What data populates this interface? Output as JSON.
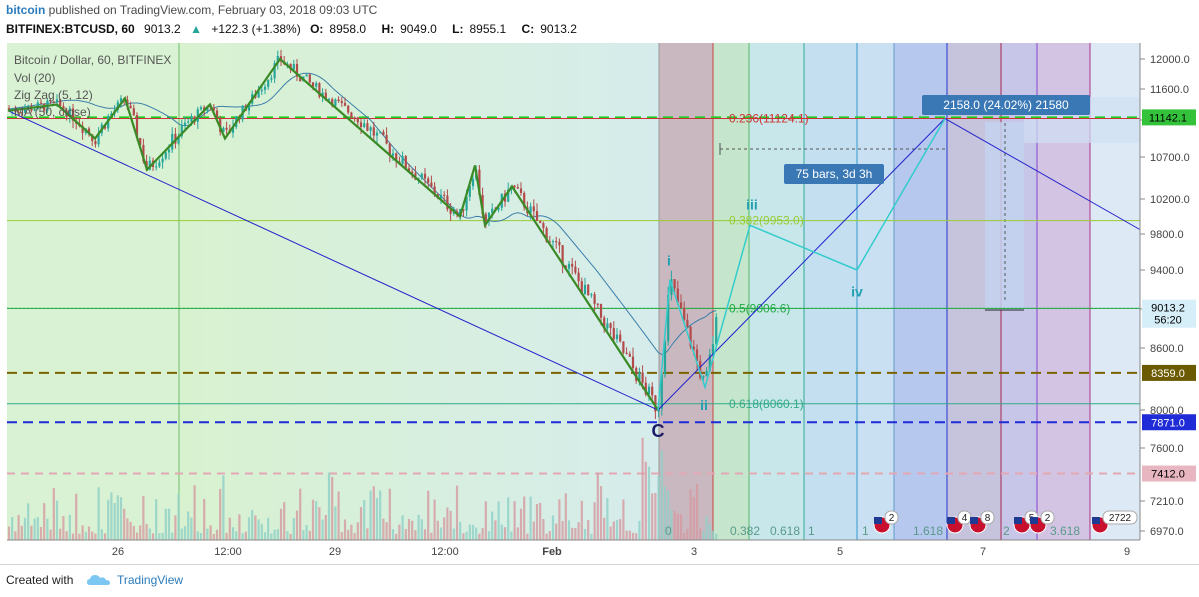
{
  "header": {
    "author": "bitcoin",
    "published": "published on TradingView.com, February 03, 2018 09:03 UTC",
    "symbol": "BITFINEX:BTCUSD, 60",
    "last": "9013.2",
    "change_arrow": "▲",
    "change": "+122.3 (+1.38%)",
    "o_label": "O:",
    "o": "8958.0",
    "h_label": "H:",
    "h": "9049.0",
    "l_label": "L:",
    "l": "8955.1",
    "c_label": "C:",
    "c": "9013.2"
  },
  "legend": {
    "title": "Bitcoin / Dollar, 60, BITFINEX",
    "vol": "Vol (20)",
    "zigzag": "Zig Zag (5, 12)",
    "ma": "MA (50, close)"
  },
  "footer": {
    "created": "Created with",
    "brand": "TradingView"
  },
  "colors": {
    "bull": "#26a69a",
    "bear": "#b24a4a",
    "zigzag": "#3a8a25",
    "trend": "#2222cc",
    "wave": "#33cccc",
    "ma": "#3b7fa8"
  },
  "chart_data": {
    "type": "candlestick",
    "ylim": [
      6900,
      12150
    ],
    "y_ticks": [
      12000.0,
      11600.0,
      11100.0,
      10700.0,
      10200.0,
      9800.0,
      9400.0,
      9000.0,
      8600.0,
      8000.0,
      7600.0,
      7210.0,
      6970.0
    ],
    "x_ticks": [
      "26",
      "12:00",
      "29",
      "12:00",
      "Feb",
      "3",
      "5",
      "7",
      "9"
    ],
    "price_labels": [
      {
        "text": "11142.1",
        "value": 11142.1,
        "bg": "#35c23b",
        "fg": "#000000"
      },
      {
        "text": "9013.2",
        "value": 9013.2,
        "bg": "#d6eef8",
        "fg": "#000000"
      },
      {
        "text": "56:20",
        "value": 8890,
        "bg": "#d6eef8",
        "fg": "#000000"
      },
      {
        "text": "8359.0",
        "value": 8359.0,
        "bg": "#6b5a00",
        "fg": "#ffffff"
      },
      {
        "text": "7871.0",
        "value": 7871.0,
        "bg": "#1e2bd6",
        "fg": "#ffffff"
      },
      {
        "text": "7412.0",
        "value": 7412.0,
        "bg": "#e8b6c0",
        "fg": "#000000"
      }
    ],
    "horizontal_lines": [
      {
        "value": 11142.1,
        "color": "#22cc22",
        "dash": "10,6",
        "width": 2
      },
      {
        "value": 8359.0,
        "color": "#7a6300",
        "dash": "10,6",
        "width": 2
      },
      {
        "value": 7871.0,
        "color": "#1e2bd6",
        "dash": "10,6",
        "width": 2
      },
      {
        "value": 7412.0,
        "color": "#e3a8b4",
        "dash": "8,6",
        "width": 2
      },
      {
        "value": 9006.6,
        "color": "#44aa44",
        "dash": "2,2",
        "width": 1
      }
    ],
    "fib_levels": [
      {
        "label": "0.236(11124.1)",
        "value": 11124.1,
        "color": "#cc3333"
      },
      {
        "label": "0.382(9953.0)",
        "value": 9953.0,
        "color": "#99cc33"
      },
      {
        "label": "0.5(9006.6)",
        "value": 9006.6,
        "color": "#22aa44"
      },
      {
        "label": "0.618(8060.1)",
        "value": 8060.1,
        "color": "#33aa88"
      }
    ],
    "zigzag": [
      [
        8,
        11250
      ],
      [
        57,
        11350
      ],
      [
        95,
        10900
      ],
      [
        125,
        11450
      ],
      [
        147,
        10550
      ],
      [
        210,
        11350
      ],
      [
        225,
        10900
      ],
      [
        280,
        12000
      ],
      [
        460,
        10000
      ],
      [
        475,
        10600
      ],
      [
        485,
        9900
      ],
      [
        512,
        10350
      ],
      [
        658,
        8000
      ]
    ],
    "trendline": [
      [
        8,
        11250
      ],
      [
        658,
        8000
      ],
      [
        945,
        11124
      ],
      [
        1140,
        9850
      ]
    ],
    "wave": [
      [
        658,
        8000
      ],
      [
        670,
        9300
      ],
      [
        705,
        8220
      ],
      [
        750,
        9900
      ],
      [
        857,
        9400
      ],
      [
        945,
        11124
      ]
    ],
    "wave_labels": [
      {
        "text": "i",
        "x": 669,
        "y": 9450
      },
      {
        "text": "ii",
        "x": 704,
        "y": 8000
      },
      {
        "text": "iii",
        "x": 752,
        "y": 10080
      },
      {
        "text": "iv",
        "x": 857,
        "y": 9130
      },
      {
        "text": "C",
        "x": 658,
        "y": 7800
      }
    ],
    "measure": {
      "text": "2158.0 (24.02%) 21580",
      "bars": "75 bars, 3d 3h"
    },
    "bottom_labels": [
      {
        "text": "0",
        "x": 665
      },
      {
        "text": "0.382",
        "x": 730
      },
      {
        "text": "0.618",
        "x": 770
      },
      {
        "text": "1",
        "x": 808
      },
      {
        "text": "1",
        "x": 862
      },
      {
        "text": "1.618",
        "x": 913
      },
      {
        "text": "2",
        "x": 1003
      },
      {
        "text": "3.618",
        "x": 1050
      }
    ],
    "event_badges": [
      {
        "text": "2",
        "x": 882
      },
      {
        "text": "4",
        "x": 955
      },
      {
        "text": "8",
        "x": 978
      },
      {
        "text": "5",
        "x": 1022
      },
      {
        "text": "2",
        "x": 1038
      },
      {
        "text": "2722",
        "x": 1100
      }
    ]
  }
}
